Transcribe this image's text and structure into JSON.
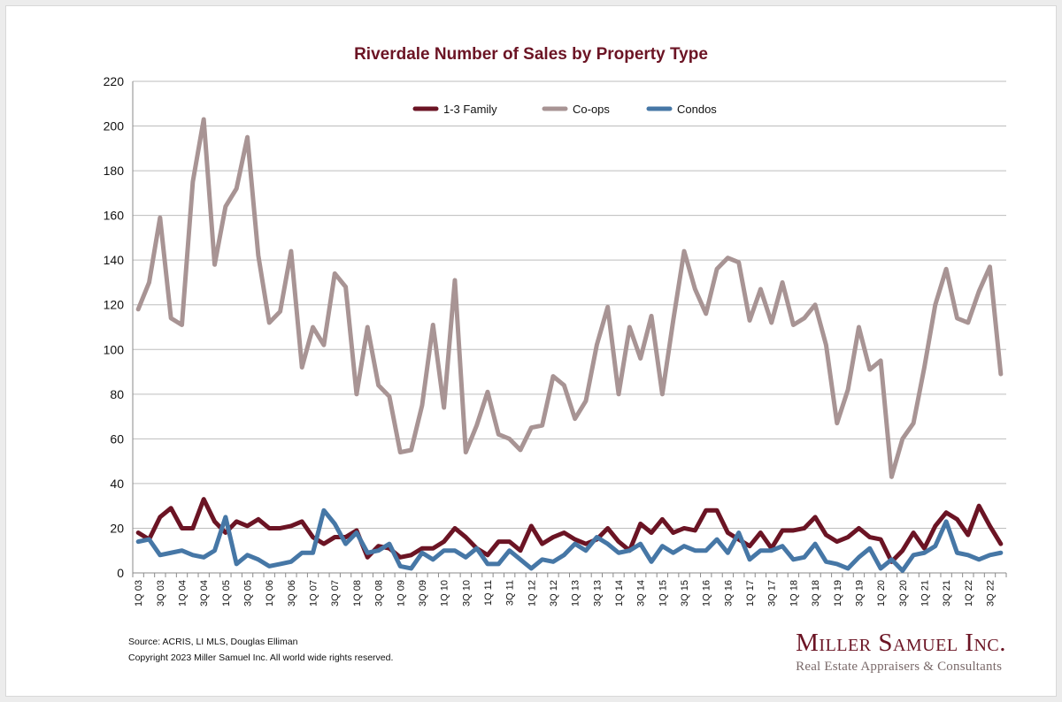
{
  "chart_data": {
    "type": "line",
    "title": "Riverdale Number of Sales by Property Type",
    "xlabel": "",
    "ylabel": "",
    "ylim": [
      0,
      220
    ],
    "yticks": [
      0,
      20,
      40,
      60,
      80,
      100,
      120,
      140,
      160,
      180,
      200,
      220
    ],
    "grid": true,
    "legend_position": "top-center",
    "x": [
      "1Q 03",
      "2Q 03",
      "3Q 03",
      "4Q 03",
      "1Q 04",
      "2Q 04",
      "3Q 04",
      "4Q 04",
      "1Q 05",
      "2Q 05",
      "3Q 05",
      "4Q 05",
      "1Q 06",
      "2Q 06",
      "3Q 06",
      "4Q 06",
      "1Q 07",
      "2Q 07",
      "3Q 07",
      "4Q 07",
      "1Q 08",
      "2Q 08",
      "3Q 08",
      "4Q 08",
      "1Q 09",
      "2Q 09",
      "3Q 09",
      "4Q 09",
      "1Q 10",
      "2Q 10",
      "3Q 10",
      "4Q 10",
      "1Q 11",
      "2Q 11",
      "3Q 11",
      "4Q 11",
      "1Q 12",
      "2Q 12",
      "3Q 12",
      "4Q 12",
      "1Q 13",
      "2Q 13",
      "3Q 13",
      "4Q 13",
      "1Q 14",
      "2Q 14",
      "3Q 14",
      "4Q 14",
      "1Q 15",
      "2Q 15",
      "3Q 15",
      "4Q 15",
      "1Q 16",
      "2Q 16",
      "3Q 16",
      "4Q 16",
      "1Q 17",
      "2Q 17",
      "3Q 17",
      "4Q 17",
      "1Q 18",
      "2Q 18",
      "3Q 18",
      "4Q 18",
      "1Q 19",
      "2Q 19",
      "3Q 19",
      "4Q 19",
      "1Q 20",
      "2Q 20",
      "3Q 20",
      "4Q 20",
      "1Q 21",
      "2Q 21",
      "3Q 21",
      "4Q 21",
      "1Q 22",
      "2Q 22",
      "3Q 22",
      "4Q 22"
    ],
    "xtick_labels": [
      "1Q 03",
      "3Q 03",
      "1Q 04",
      "3Q 04",
      "1Q 05",
      "3Q 05",
      "1Q 06",
      "3Q 06",
      "1Q 07",
      "3Q 07",
      "1Q 08",
      "3Q 08",
      "1Q 09",
      "3Q 09",
      "1Q 10",
      "3Q 10",
      "1Q 11",
      "3Q 11",
      "1Q 12",
      "3Q 12",
      "1Q 13",
      "3Q 13",
      "1Q 14",
      "3Q 14",
      "1Q 15",
      "3Q 15",
      "1Q 16",
      "3Q 16",
      "1Q 17",
      "3Q 17",
      "1Q 18",
      "3Q 18",
      "1Q 19",
      "3Q 19",
      "1Q 20",
      "3Q 20",
      "1Q 21",
      "3Q 21",
      "1Q 22",
      "3Q 22"
    ],
    "series": [
      {
        "name": "1-3 Family",
        "color": "#6b1424",
        "values": [
          18,
          15,
          25,
          29,
          20,
          20,
          33,
          23,
          18,
          23,
          21,
          24,
          20,
          20,
          21,
          23,
          16,
          13,
          16,
          16,
          19,
          7,
          12,
          11,
          7,
          8,
          11,
          11,
          14,
          20,
          16,
          11,
          8,
          14,
          14,
          10,
          21,
          13,
          16,
          18,
          15,
          13,
          15,
          20,
          14,
          10,
          22,
          18,
          24,
          18,
          20,
          19,
          28,
          28,
          18,
          15,
          12,
          18,
          11,
          19,
          19,
          20,
          25,
          17,
          14,
          16,
          20,
          16,
          15,
          5,
          10,
          18,
          11,
          21,
          27,
          24,
          17,
          30,
          21,
          13
        ]
      },
      {
        "name": "Co-ops",
        "color": "#a89494",
        "values": [
          118,
          130,
          159,
          114,
          111,
          175,
          203,
          138,
          164,
          172,
          195,
          142,
          112,
          117,
          144,
          92,
          110,
          102,
          134,
          128,
          80,
          110,
          84,
          79,
          54,
          55,
          75,
          111,
          74,
          131,
          54,
          66,
          81,
          62,
          60,
          55,
          65,
          66,
          88,
          84,
          69,
          77,
          102,
          119,
          80,
          110,
          96,
          115,
          80,
          113,
          144,
          127,
          116,
          136,
          141,
          139,
          113,
          127,
          112,
          130,
          111,
          114,
          120,
          102,
          67,
          82,
          110,
          91,
          95,
          43,
          60,
          67,
          92,
          120,
          136,
          114,
          112,
          126,
          137,
          89
        ]
      },
      {
        "name": "Condos",
        "color": "#4677a6",
        "values": [
          14,
          15,
          8,
          9,
          10,
          8,
          7,
          10,
          25,
          4,
          8,
          6,
          3,
          4,
          5,
          9,
          9,
          28,
          22,
          13,
          18,
          9,
          10,
          13,
          3,
          2,
          9,
          6,
          10,
          10,
          7,
          11,
          4,
          4,
          10,
          6,
          2,
          6,
          5,
          8,
          13,
          10,
          16,
          13,
          9,
          10,
          13,
          5,
          12,
          9,
          12,
          10,
          10,
          15,
          9,
          18,
          6,
          10,
          10,
          12,
          6,
          7,
          13,
          5,
          4,
          2,
          7,
          11,
          2,
          6,
          1,
          8,
          9,
          12,
          23,
          9,
          8,
          6,
          8,
          9
        ]
      }
    ]
  },
  "footer": {
    "source": "Source: ACRIS, LI MLS, Douglas Elliman",
    "copyright": "Copyright 2023 Miller Samuel Inc.  All world wide rights reserved."
  },
  "logo": {
    "name": "Miller Samuel Inc.",
    "tagline": "Real Estate Appraisers & Consultants"
  }
}
